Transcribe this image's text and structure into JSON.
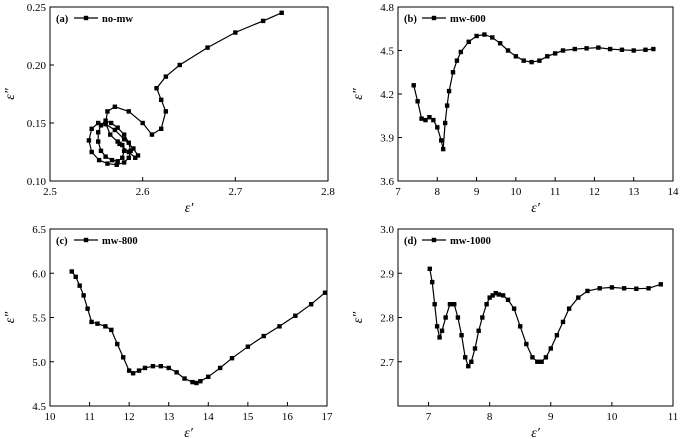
{
  "chart_data": [
    {
      "type": "scatter",
      "panel_label": "(a)",
      "series": [
        {
          "name": "no-mw",
          "x": [
            2.75,
            2.73,
            2.7,
            2.67,
            2.64,
            2.625,
            2.615,
            2.62,
            2.625,
            2.62,
            2.61,
            2.6,
            2.585,
            2.57,
            2.562,
            2.56,
            2.565,
            2.575,
            2.585,
            2.592,
            2.595,
            2.59,
            2.58,
            2.57,
            2.56,
            2.552,
            2.545,
            2.542,
            2.545,
            2.553,
            2.562,
            2.572,
            2.58,
            2.585,
            2.587,
            2.585,
            2.58,
            2.573,
            2.566,
            2.56,
            2.555,
            2.552,
            2.552,
            2.555,
            2.56,
            2.567,
            2.573,
            2.578,
            2.58,
            2.578,
            2.573
          ],
          "y": [
            0.245,
            0.238,
            0.228,
            0.215,
            0.2,
            0.19,
            0.18,
            0.17,
            0.16,
            0.145,
            0.14,
            0.15,
            0.16,
            0.164,
            0.16,
            0.15,
            0.14,
            0.132,
            0.125,
            0.12,
            0.122,
            0.128,
            0.136,
            0.144,
            0.149,
            0.15,
            0.145,
            0.135,
            0.125,
            0.118,
            0.115,
            0.114,
            0.116,
            0.12,
            0.126,
            0.133,
            0.14,
            0.146,
            0.15,
            0.152,
            0.148,
            0.142,
            0.134,
            0.126,
            0.121,
            0.118,
            0.117,
            0.12,
            0.126,
            0.131,
            0.134
          ]
        }
      ],
      "xlabel": "ε′",
      "ylabel": "ε″",
      "xlim": [
        2.5,
        2.8
      ],
      "ylim": [
        0.1,
        0.25
      ],
      "xticks": [
        "2.5",
        "2.6",
        "2.7",
        "2.8"
      ],
      "yticks": [
        "0.10",
        "0.15",
        "0.20",
        "0.25"
      ]
    },
    {
      "type": "scatter",
      "panel_label": "(b)",
      "series": [
        {
          "name": "mw-600",
          "x": [
            7.4,
            7.5,
            7.6,
            7.7,
            7.8,
            7.9,
            8.0,
            8.1,
            8.15,
            8.2,
            8.25,
            8.3,
            8.4,
            8.5,
            8.6,
            8.8,
            9.0,
            9.2,
            9.4,
            9.6,
            9.8,
            10.0,
            10.2,
            10.4,
            10.6,
            10.8,
            11.0,
            11.2,
            11.5,
            11.8,
            12.1,
            12.4,
            12.7,
            13.0,
            13.3,
            13.5
          ],
          "y": [
            4.26,
            4.15,
            4.03,
            4.02,
            4.04,
            4.02,
            3.97,
            3.88,
            3.82,
            4.0,
            4.12,
            4.22,
            4.35,
            4.43,
            4.49,
            4.56,
            4.6,
            4.61,
            4.59,
            4.55,
            4.5,
            4.46,
            4.43,
            4.42,
            4.43,
            4.46,
            4.48,
            4.5,
            4.51,
            4.515,
            4.52,
            4.51,
            4.505,
            4.5,
            4.505,
            4.51
          ]
        }
      ],
      "xlabel": "ε′",
      "ylabel": "ε″",
      "xlim": [
        7,
        14
      ],
      "ylim": [
        3.6,
        4.8
      ],
      "xticks": [
        "7",
        "8",
        "9",
        "10",
        "11",
        "12",
        "13",
        "14"
      ],
      "yticks": [
        "3.6",
        "3.9",
        "4.2",
        "4.5",
        "4.8"
      ]
    },
    {
      "type": "scatter",
      "panel_label": "(c)",
      "series": [
        {
          "name": "mw-800",
          "x": [
            10.55,
            10.65,
            10.75,
            10.85,
            10.95,
            11.05,
            11.2,
            11.4,
            11.55,
            11.7,
            11.85,
            12.0,
            12.1,
            12.25,
            12.4,
            12.6,
            12.8,
            13.0,
            13.2,
            13.4,
            13.6,
            13.7,
            13.8,
            14.0,
            14.3,
            14.6,
            15.0,
            15.4,
            15.8,
            16.2,
            16.6,
            16.95
          ],
          "y": [
            6.02,
            5.96,
            5.86,
            5.75,
            5.6,
            5.45,
            5.43,
            5.4,
            5.36,
            5.2,
            5.05,
            4.9,
            4.87,
            4.9,
            4.93,
            4.95,
            4.95,
            4.93,
            4.88,
            4.81,
            4.77,
            4.76,
            4.78,
            4.83,
            4.93,
            5.04,
            5.17,
            5.29,
            5.4,
            5.52,
            5.65,
            5.78
          ]
        }
      ],
      "xlabel": "ε′",
      "ylabel": "ε″",
      "xlim": [
        10,
        17
      ],
      "ylim": [
        4.5,
        6.5
      ],
      "xticks": [
        "10",
        "11",
        "12",
        "13",
        "14",
        "15",
        "16",
        "17"
      ],
      "yticks": [
        "4.5",
        "5.0",
        "5.5",
        "6.0",
        "6.5"
      ]
    },
    {
      "type": "scatter",
      "panel_label": "(d)",
      "series": [
        {
          "name": "mw-1000",
          "x": [
            7.02,
            7.06,
            7.1,
            7.14,
            7.18,
            7.22,
            7.28,
            7.35,
            7.42,
            7.48,
            7.54,
            7.6,
            7.65,
            7.7,
            7.76,
            7.82,
            7.88,
            7.95,
            8.0,
            8.05,
            8.1,
            8.15,
            8.22,
            8.3,
            8.4,
            8.5,
            8.6,
            8.7,
            8.78,
            8.85,
            8.92,
            9.0,
            9.1,
            9.2,
            9.3,
            9.45,
            9.6,
            9.8,
            10.0,
            10.2,
            10.4,
            10.6,
            10.8
          ],
          "y": [
            2.91,
            2.88,
            2.83,
            2.78,
            2.755,
            2.77,
            2.8,
            2.83,
            2.83,
            2.8,
            2.76,
            2.71,
            2.69,
            2.7,
            2.73,
            2.77,
            2.8,
            2.83,
            2.845,
            2.85,
            2.855,
            2.852,
            2.85,
            2.84,
            2.82,
            2.78,
            2.74,
            2.71,
            2.7,
            2.7,
            2.71,
            2.73,
            2.76,
            2.79,
            2.82,
            2.845,
            2.86,
            2.866,
            2.868,
            2.866,
            2.865,
            2.866,
            2.875
          ]
        }
      ],
      "xlabel": "ε′",
      "ylabel": "ε″",
      "xlim": [
        6.5,
        11
      ],
      "ylim": [
        2.6,
        3.0
      ],
      "xticks": [
        "7",
        "8",
        "9",
        "10",
        "11"
      ],
      "yticks": [
        "2.7",
        "2.8",
        "2.9",
        "3.0"
      ]
    }
  ]
}
